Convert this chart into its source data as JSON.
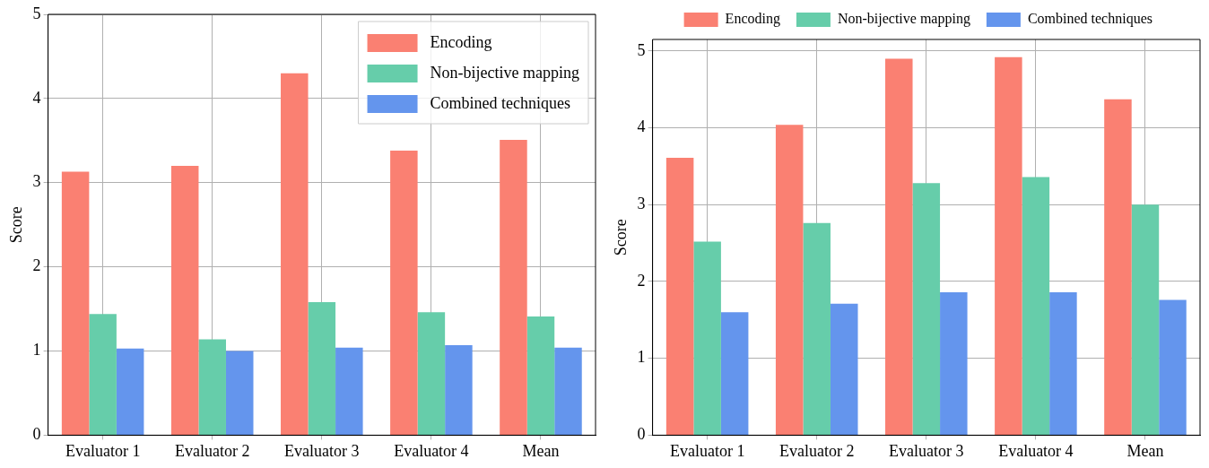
{
  "chart_data": [
    {
      "type": "bar",
      "ylabel": "Score",
      "categories": [
        "Evaluator 1",
        "Evaluator 2",
        "Evaluator 3",
        "Evaluator 4",
        "Mean"
      ],
      "ylim": [
        0,
        5
      ],
      "yticks": [
        0,
        1,
        2,
        3,
        4,
        5
      ],
      "grid": true,
      "legend": "top right",
      "series": [
        {
          "name": "Encoding",
          "color": "#fa8072",
          "values": [
            3.13,
            3.2,
            4.3,
            3.38,
            3.51
          ]
        },
        {
          "name": "Non-bijective mapping",
          "color": "#66cdaa",
          "values": [
            1.44,
            1.14,
            1.58,
            1.46,
            1.41
          ]
        },
        {
          "name": "Combined techniques",
          "color": "#6495ed",
          "values": [
            1.03,
            1.0,
            1.04,
            1.07,
            1.04
          ]
        }
      ]
    },
    {
      "type": "bar",
      "ylabel": "Score",
      "categories": [
        "Evaluator 1",
        "Evaluator 2",
        "Evaluator 3",
        "Evaluator 4",
        "Mean"
      ],
      "ylim": [
        0,
        5.15
      ],
      "yticks": [
        0,
        1,
        2,
        3,
        4,
        5
      ],
      "grid": true,
      "legend": "top",
      "series": [
        {
          "name": "Encoding",
          "color": "#fa8072",
          "values": [
            3.61,
            4.04,
            4.9,
            4.92,
            4.37
          ]
        },
        {
          "name": "Non-bijective mapping",
          "color": "#66cdaa",
          "values": [
            2.52,
            2.76,
            3.28,
            3.36,
            3.0
          ]
        },
        {
          "name": "Combined techniques",
          "color": "#6495ed",
          "values": [
            1.6,
            1.71,
            1.86,
            1.86,
            1.76
          ]
        }
      ]
    }
  ]
}
